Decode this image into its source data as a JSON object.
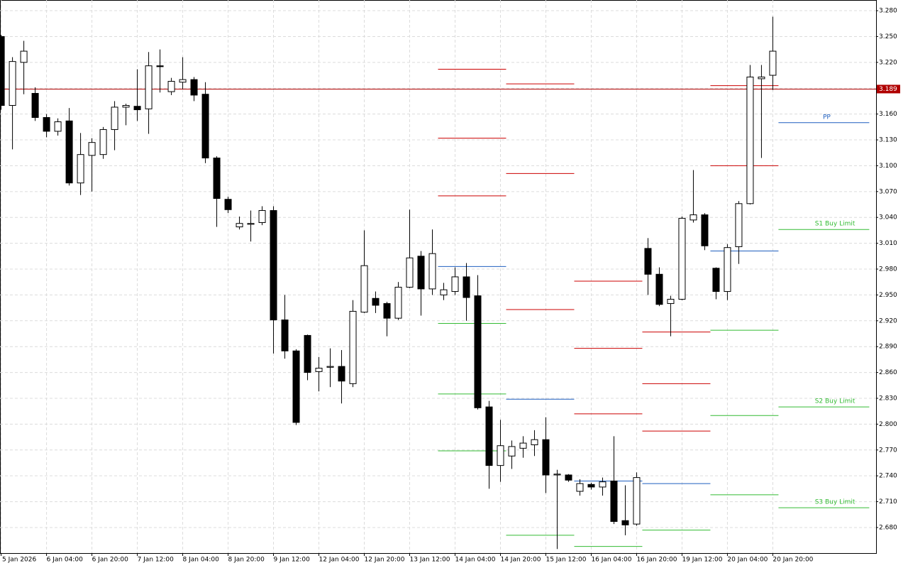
{
  "chart_data": {
    "type": "candlestick",
    "categories": [
      "5 Jan 2026",
      null,
      null,
      null,
      "6 Jan 04:00",
      null,
      null,
      null,
      "6 Jan 20:00",
      null,
      null,
      null,
      "7 Jan 12:00",
      null,
      null,
      null,
      "8 Jan 04:00",
      null,
      null,
      null,
      "8 Jan 20:00",
      null,
      null,
      null,
      "9 Jan 12:00",
      null,
      null,
      null,
      "12 Jan 04:00",
      null,
      null,
      null,
      "12 Jan 20:00",
      null,
      null,
      null,
      "13 Jan 12:00",
      null,
      null,
      null,
      "14 Jan 04:00",
      null,
      null,
      null,
      "14 Jan 20:00",
      null,
      null,
      null,
      "15 Jan 12:00",
      null,
      null,
      null,
      "16 Jan 04:00",
      null,
      null,
      null,
      "16 Jan 20:00",
      null,
      null,
      null,
      "19 Jan 12:00",
      null,
      null,
      null,
      "20 Jan 04:00",
      null,
      null,
      null,
      "20 Jan 20:00"
    ],
    "open": [
      3.25,
      3.17,
      3.22,
      3.184,
      3.156,
      3.14,
      3.152,
      3.08,
      3.112,
      3.113,
      3.142,
      3.168,
      3.169,
      3.166,
      3.216,
      3.186,
      3.197,
      3.2,
      3.183,
      3.109,
      3.061,
      3.029,
      3.032,
      3.034,
      3.048,
      2.921,
      2.885,
      2.903,
      2.861,
      2.866,
      2.867,
      2.847,
      2.93,
      2.946,
      2.94,
      2.923,
      2.959,
      2.995,
      2.957,
      2.95,
      2.954,
      2.971,
      2.949,
      2.82,
      2.752,
      2.763,
      2.772,
      2.776,
      2.782,
      2.741,
      2.741,
      2.722,
      2.73,
      2.727,
      2.734,
      2.688,
      2.684,
      3.004,
      2.974,
      2.94,
      2.945,
      3.037,
      3.043,
      2.981,
      2.954,
      3.006,
      3.056,
      3.201,
      3.205
    ],
    "high": [
      3.252,
      3.226,
      3.245,
      3.191,
      3.16,
      3.155,
      3.167,
      3.138,
      3.132,
      3.145,
      3.175,
      3.172,
      3.212,
      3.232,
      3.235,
      3.202,
      3.226,
      3.203,
      3.197,
      3.111,
      3.064,
      3.041,
      3.048,
      3.053,
      3.053,
      2.95,
      2.887,
      2.904,
      2.878,
      2.888,
      2.886,
      2.944,
      3.025,
      2.954,
      2.942,
      2.965,
      3.049,
      3.001,
      3.026,
      2.964,
      2.982,
      2.987,
      2.973,
      2.827,
      2.805,
      2.781,
      2.786,
      2.793,
      2.808,
      2.747,
      2.742,
      2.736,
      2.732,
      2.738,
      2.786,
      2.729,
      2.744,
      3.016,
      2.982,
      2.949,
      3.041,
      3.095,
      3.045,
      2.982,
      3.009,
      3.059,
      3.217,
      3.217,
      3.273
    ],
    "low": [
      3.165,
      3.119,
      3.183,
      3.152,
      3.133,
      3.135,
      3.077,
      3.066,
      3.07,
      3.108,
      3.118,
      3.147,
      3.152,
      3.137,
      3.185,
      3.182,
      3.189,
      3.175,
      3.103,
      3.029,
      3.045,
      3.026,
      3.012,
      3.031,
      2.882,
      2.876,
      2.799,
      2.851,
      2.838,
      2.843,
      2.824,
      2.843,
      2.929,
      2.929,
      2.902,
      2.921,
      2.958,
      2.926,
      2.95,
      2.944,
      2.95,
      2.92,
      2.817,
      2.725,
      2.733,
      2.748,
      2.761,
      2.763,
      2.72,
      2.655,
      2.733,
      2.717,
      2.724,
      2.717,
      2.684,
      2.671,
      2.682,
      2.95,
      2.937,
      2.902,
      2.944,
      3.034,
      3.002,
      2.945,
      2.944,
      2.986,
      3.055,
      3.109,
      3.188
    ],
    "close": [
      3.17,
      3.221,
      3.233,
      3.156,
      3.14,
      3.151,
      3.08,
      3.113,
      3.127,
      3.142,
      3.168,
      3.17,
      3.165,
      3.216,
      3.215,
      3.198,
      3.2,
      3.182,
      3.109,
      3.062,
      3.049,
      3.033,
      3.033,
      3.048,
      2.921,
      2.885,
      2.802,
      2.86,
      2.865,
      2.867,
      2.85,
      2.931,
      2.984,
      2.938,
      2.923,
      2.959,
      2.993,
      2.957,
      2.998,
      2.956,
      2.971,
      2.947,
      2.819,
      2.752,
      2.775,
      2.774,
      2.778,
      2.782,
      2.741,
      2.742,
      2.735,
      2.731,
      2.727,
      2.733,
      2.687,
      2.683,
      2.738,
      2.974,
      2.939,
      2.945,
      3.039,
      3.043,
      3.007,
      2.954,
      3.005,
      3.056,
      3.203,
      3.203,
      3.233
    ],
    "up_color": "#ffffff",
    "down_color": "#000000",
    "xlim": [
      -0.1,
      77.1
    ],
    "ylim": [
      2.6503,
      3.2924
    ],
    "yticks": [
      {
        "value": 3.28,
        "label": "3.280"
      },
      {
        "value": 3.25,
        "label": "3.250"
      },
      {
        "value": 3.22,
        "label": "3.220"
      },
      {
        "value": 3.19,
        "label": "3.190"
      },
      {
        "value": 3.16,
        "label": "3.160"
      },
      {
        "value": 3.13,
        "label": "3.130"
      },
      {
        "value": 3.1,
        "label": "3.100"
      },
      {
        "value": 3.07,
        "label": "3.070"
      },
      {
        "value": 3.04,
        "label": "3.040"
      },
      {
        "value": 3.01,
        "label": "3.010"
      },
      {
        "value": 2.98,
        "label": "2.980"
      },
      {
        "value": 2.95,
        "label": "2.950"
      },
      {
        "value": 2.92,
        "label": "2.920"
      },
      {
        "value": 2.89,
        "label": "2.890"
      },
      {
        "value": 2.86,
        "label": "2.860"
      },
      {
        "value": 2.83,
        "label": "2.830"
      },
      {
        "value": 2.8,
        "label": "2.800"
      },
      {
        "value": 2.77,
        "label": "2.770"
      },
      {
        "value": 2.74,
        "label": "2.740"
      },
      {
        "value": 2.71,
        "label": "2.710"
      },
      {
        "value": 2.68,
        "label": "2.680"
      }
    ],
    "grid": true,
    "current_price": 3.189,
    "current_price_color": "#b00000",
    "resistance_color": "#cc0000",
    "pivot_color": "#1f5fbf",
    "support_color": "#33bb33",
    "levels": [
      {
        "x": [
          39,
          45
        ],
        "resistance": [
          3.212,
          3.132,
          3.065
        ],
        "pivot": 2.983,
        "support": [
          2.917,
          2.835,
          2.769
        ]
      },
      {
        "x": [
          45,
          51
        ],
        "resistance": [
          3.195,
          3.091,
          2.933
        ],
        "pivot": 2.829,
        "support": [
          2.671
        ]
      },
      {
        "x": [
          51,
          57
        ],
        "resistance": [
          2.966,
          2.888,
          2.812
        ],
        "pivot": 2.734,
        "support": [
          2.658
        ]
      },
      {
        "x": [
          57,
          63
        ],
        "resistance": [
          2.907,
          2.847,
          2.792
        ],
        "pivot": 2.731,
        "support": [
          2.677
        ]
      },
      {
        "x": [
          63,
          69
        ],
        "resistance": [
          3.193,
          3.1
        ],
        "pivot": 3.001,
        "support": [
          2.909,
          2.81,
          2.718
        ]
      },
      {
        "x": [
          69,
          77
        ],
        "resistance": [],
        "pivot": 3.15,
        "pivot_label": "PP",
        "support": [
          3.026,
          2.82,
          2.703
        ],
        "support_labels": [
          "S1 Buy Limit",
          "S2 Buy Limit",
          "S3 Buy Limit"
        ]
      }
    ]
  }
}
